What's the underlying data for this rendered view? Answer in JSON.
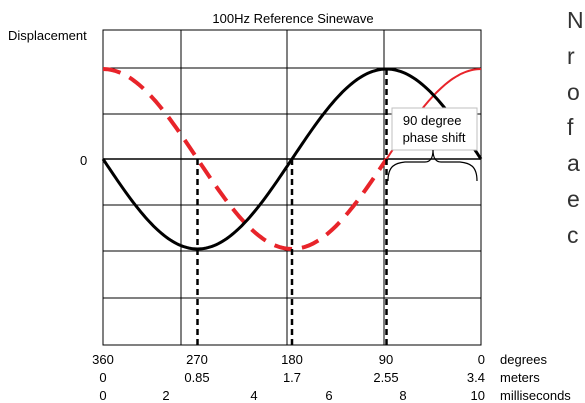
{
  "chart_data": {
    "type": "line",
    "title": "100Hz Reference Sinewave",
    "ylabel": "Displacement",
    "y_zero_label": "0",
    "annotation": "90 degree\nphase shift",
    "x_axes": [
      {
        "name": "degrees",
        "ticks": [
          "360",
          "270",
          "180",
          "90",
          "0"
        ],
        "color": "#000000"
      },
      {
        "name": "meters",
        "ticks": [
          "0",
          "0.85",
          "1.7",
          "2.55",
          "3.4"
        ],
        "color": "#7f7f7f"
      },
      {
        "name": "milliseconds",
        "ticks": [
          "0",
          "2",
          "4",
          "6",
          "8",
          "10"
        ],
        "color": "#7f7f7f"
      }
    ],
    "xlim_degrees": [
      360,
      0
    ],
    "ylim": [
      -1,
      1
    ],
    "grid": true,
    "series": [
      {
        "style": "solid",
        "color": "#000000",
        "function": "sin(degrees)"
      },
      {
        "style": "dashed",
        "color": "#e8242a",
        "function": "cos(degrees)"
      }
    ],
    "marker_lines_degrees": [
      270,
      180,
      90
    ]
  },
  "side_text_fragments": [
    "N",
    "r",
    "o",
    "f",
    "a",
    "e",
    "c"
  ]
}
